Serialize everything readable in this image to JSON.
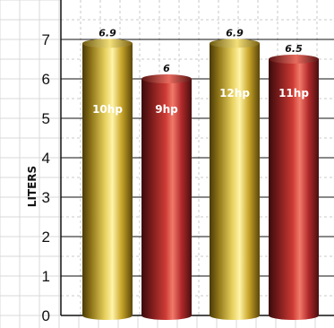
{
  "chart_data": {
    "type": "bar",
    "title": "",
    "xlabel": "",
    "ylabel": "LITERS",
    "ylim": [
      0,
      8
    ],
    "yticks": [
      0,
      1,
      2,
      3,
      4,
      5,
      6,
      7
    ],
    "grid": true,
    "categories": [
      "10hp",
      "9hp",
      "12hp",
      "11hp"
    ],
    "values": [
      6.9,
      6,
      6.9,
      6.5
    ],
    "value_labels": [
      "6.9",
      "6",
      "6.9",
      "6.5"
    ],
    "bar_colors": [
      "gold",
      "red",
      "gold",
      "red"
    ]
  }
}
